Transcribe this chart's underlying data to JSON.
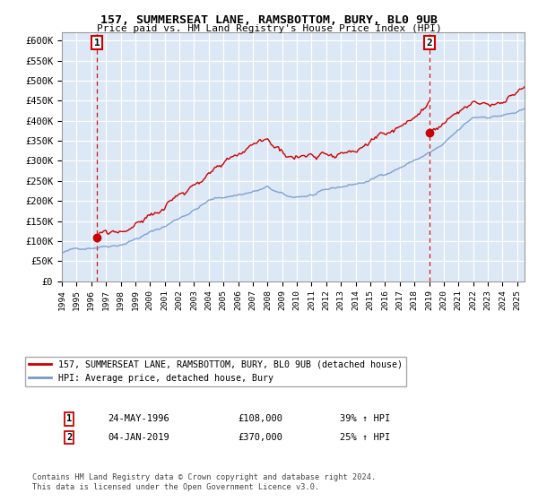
{
  "title": "157, SUMMERSEAT LANE, RAMSBOTTOM, BURY, BL0 9UB",
  "subtitle": "Price paid vs. HM Land Registry's House Price Index (HPI)",
  "ylabel_ticks": [
    "£0",
    "£50K",
    "£100K",
    "£150K",
    "£200K",
    "£250K",
    "£300K",
    "£350K",
    "£400K",
    "£450K",
    "£500K",
    "£550K",
    "£600K"
  ],
  "ylim": [
    0,
    620000
  ],
  "yticks": [
    0,
    50000,
    100000,
    150000,
    200000,
    250000,
    300000,
    350000,
    400000,
    450000,
    500000,
    550000,
    600000
  ],
  "sale1_x": 1996.39,
  "sale1_price": 108000,
  "sale2_x": 2019.01,
  "sale2_price": 370000,
  "sale1_date_str": "24-MAY-1996",
  "sale1_price_str": "£108,000",
  "sale1_hpi_pct": "39% ↑ HPI",
  "sale2_date_str": "04-JAN-2019",
  "sale2_price_str": "£370,000",
  "sale2_hpi_pct": "25% ↑ HPI",
  "legend_line1": "157, SUMMERSEAT LANE, RAMSBOTTOM, BURY, BL0 9UB (detached house)",
  "legend_line2": "HPI: Average price, detached house, Bury",
  "footer": "Contains HM Land Registry data © Crown copyright and database right 2024.\nThis data is licensed under the Open Government Licence v3.0.",
  "line_color_red": "#cc0000",
  "line_color_blue": "#7799cc",
  "vline_color": "#cc0000",
  "bg_color": "#dce8f5",
  "grid_color": "#ffffff",
  "plot_bg": "#dce8f5"
}
